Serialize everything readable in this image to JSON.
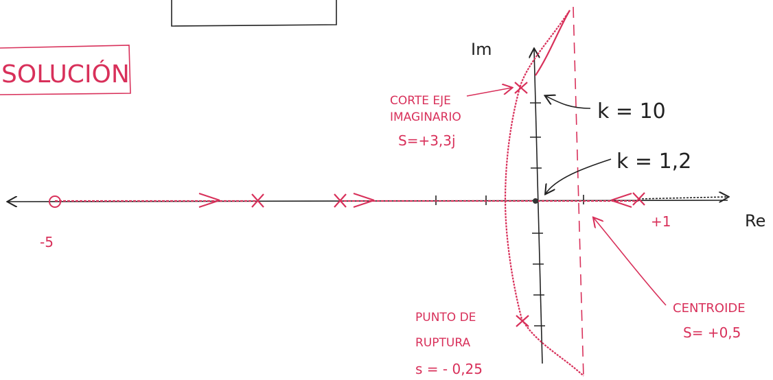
{
  "title": "SOLUCIÓN",
  "axes": {
    "imaginary": "Im",
    "real": "Re"
  },
  "axis_labels": {
    "zero": "-5",
    "pole": "+1"
  },
  "gains": {
    "crossing": "k = 10",
    "breakaway": "k = 1,2"
  },
  "annotations": {
    "crossing": [
      "CORTE EJE",
      "IMAGINARIO",
      "S=+3,3j"
    ],
    "breakaway": [
      "PUNTO DE",
      "RUPTURA",
      "s = - 0,25"
    ],
    "centroid": [
      "CENTROIDE",
      "S= +0,5"
    ]
  }
}
